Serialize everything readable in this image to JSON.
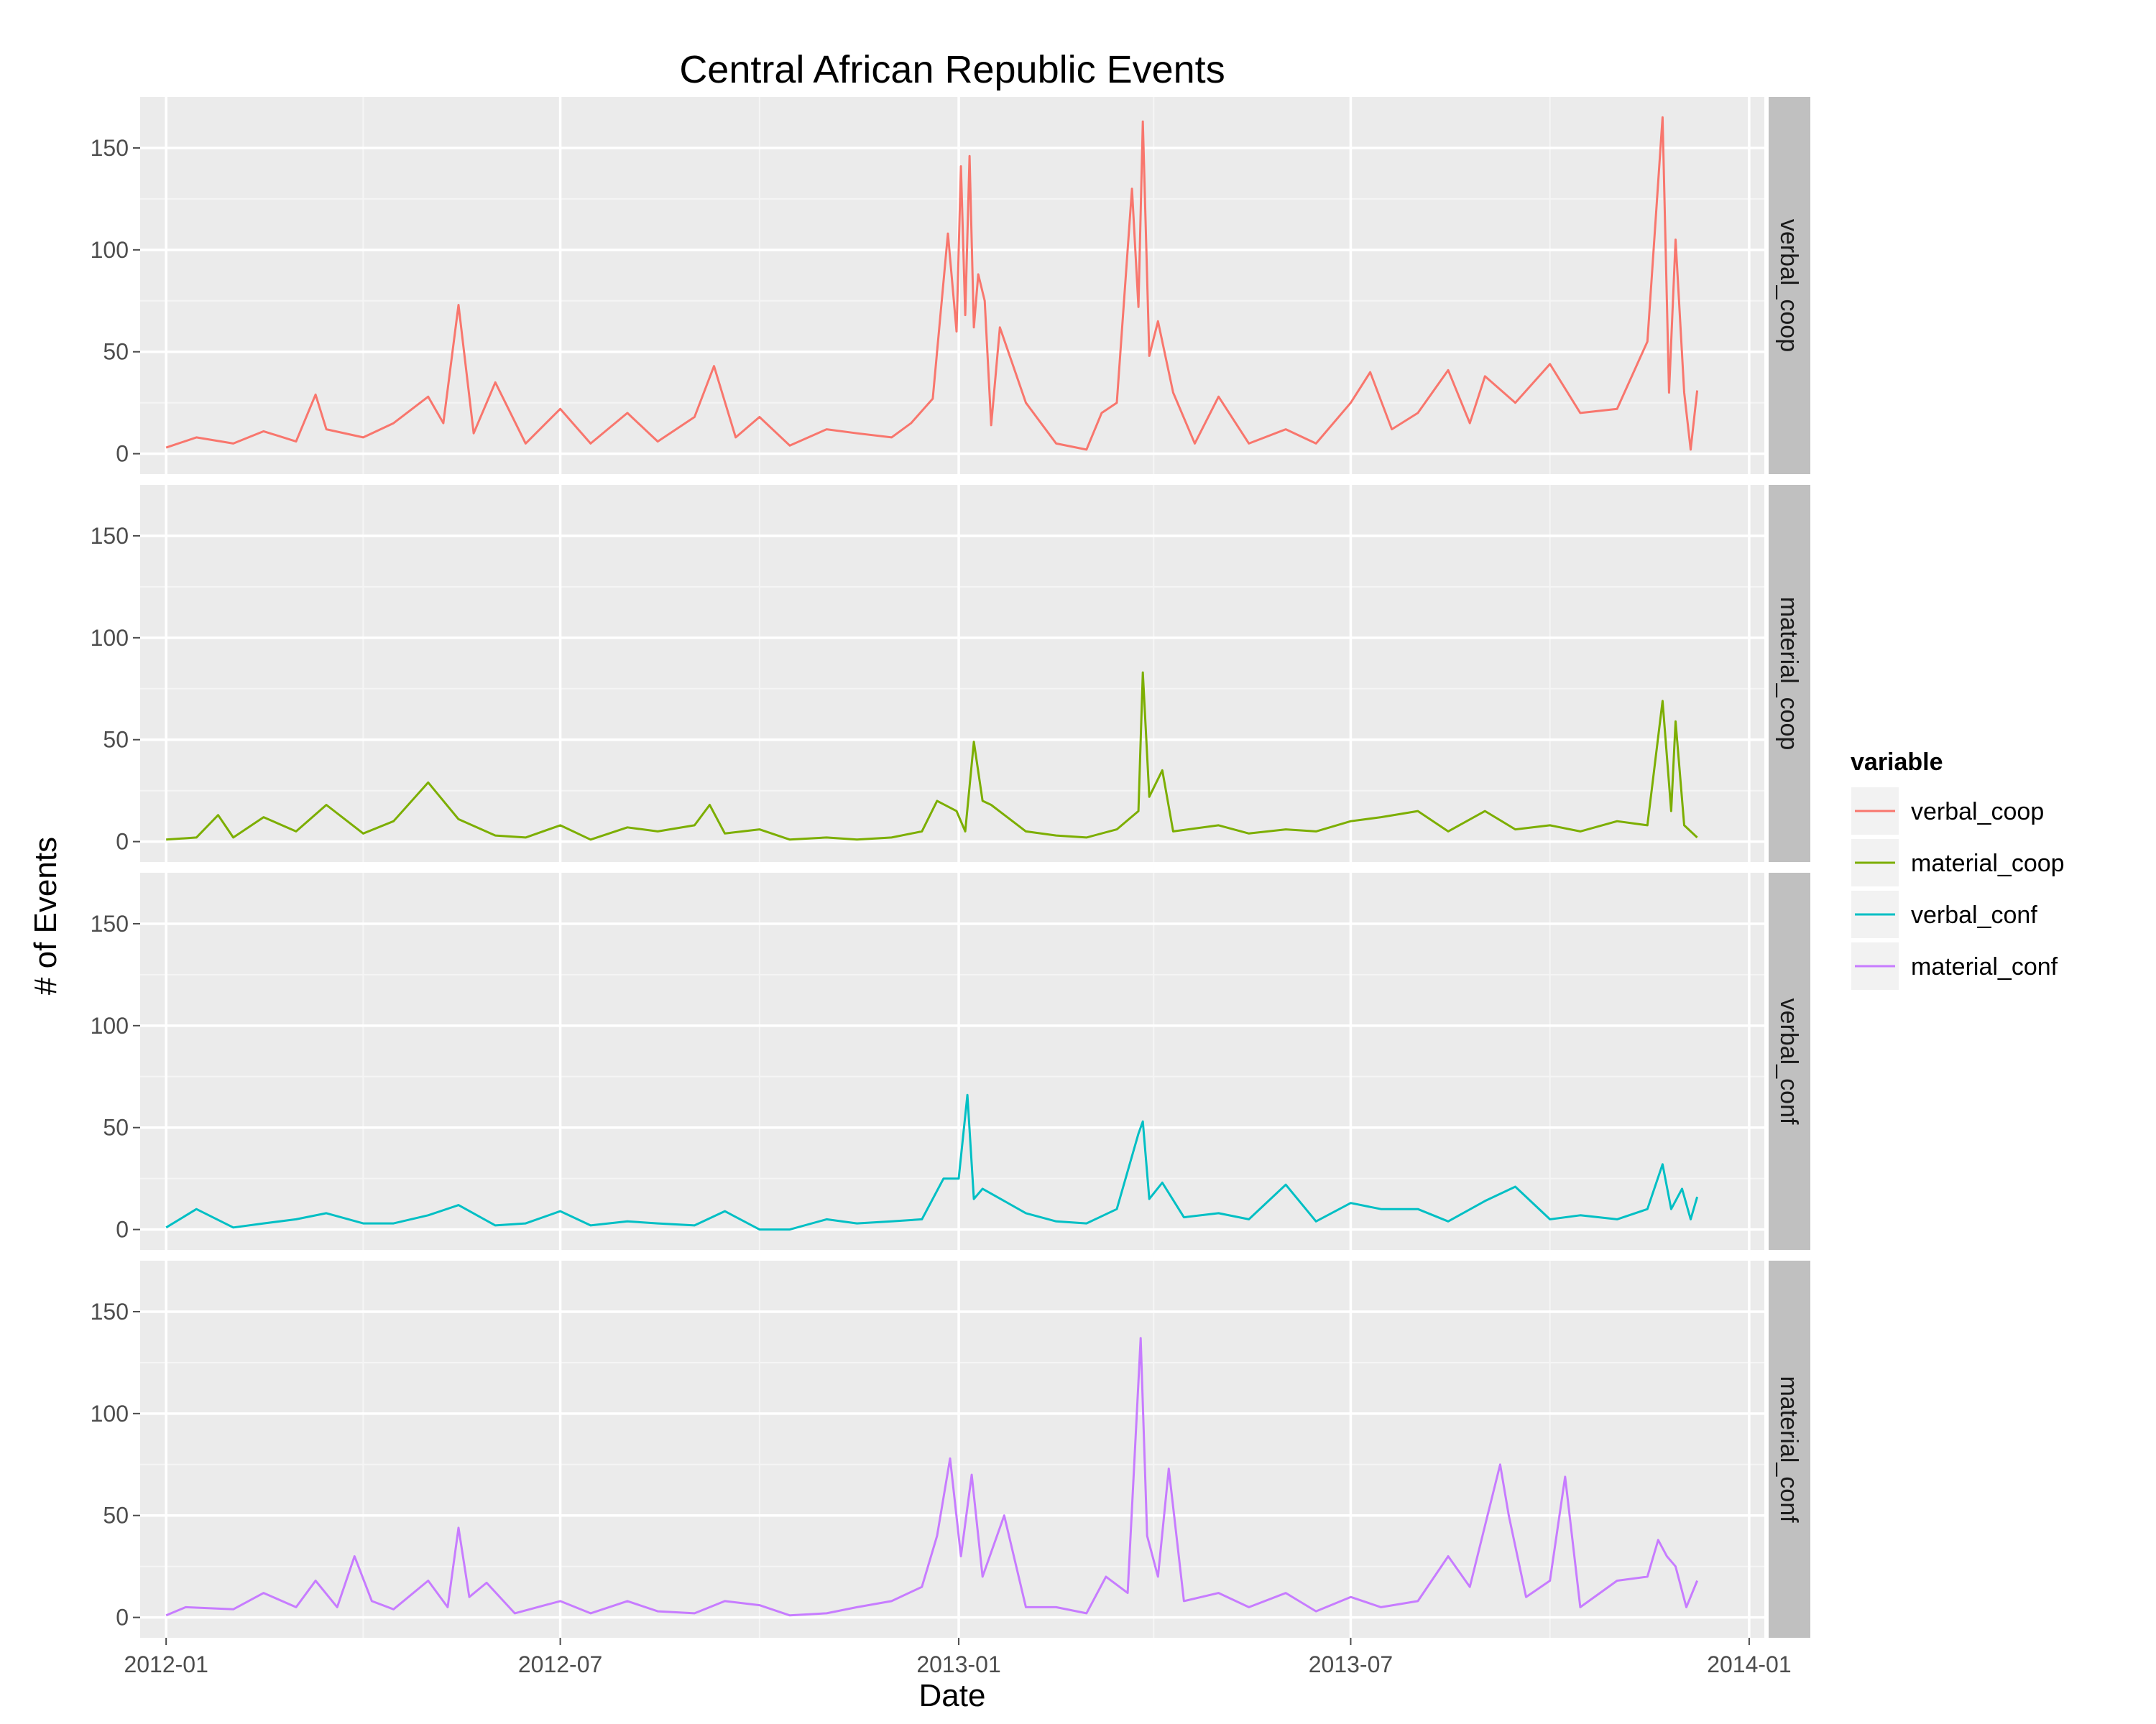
{
  "chart_data": {
    "type": "line",
    "title": "Central African Republic Events",
    "xlabel": "Date",
    "ylabel": "# of Events",
    "x_ticks": [
      "2012-01",
      "2012-07",
      "2013-01",
      "2013-07",
      "2014-01"
    ],
    "xlim": [
      "2011-12-20",
      "2014-01-08"
    ],
    "y_ticks": [
      0,
      50,
      100,
      150
    ],
    "ylim": [
      -10,
      175
    ],
    "grid": true,
    "facet": "rows",
    "legend": {
      "title": "variable",
      "position": "right"
    },
    "series": [
      {
        "name": "verbal_coop",
        "color": "#F8766D",
        "points": [
          [
            "2012-01-01",
            3
          ],
          [
            "2012-01-15",
            8
          ],
          [
            "2012-02-01",
            5
          ],
          [
            "2012-02-15",
            11
          ],
          [
            "2012-03-01",
            6
          ],
          [
            "2012-03-10",
            29
          ],
          [
            "2012-03-15",
            12
          ],
          [
            "2012-04-01",
            8
          ],
          [
            "2012-04-15",
            15
          ],
          [
            "2012-05-01",
            28
          ],
          [
            "2012-05-08",
            15
          ],
          [
            "2012-05-15",
            73
          ],
          [
            "2012-05-22",
            10
          ],
          [
            "2012-06-01",
            35
          ],
          [
            "2012-06-15",
            5
          ],
          [
            "2012-07-01",
            22
          ],
          [
            "2012-07-15",
            5
          ],
          [
            "2012-08-01",
            20
          ],
          [
            "2012-08-15",
            6
          ],
          [
            "2012-09-01",
            18
          ],
          [
            "2012-09-10",
            43
          ],
          [
            "2012-09-20",
            8
          ],
          [
            "2012-10-01",
            18
          ],
          [
            "2012-10-15",
            4
          ],
          [
            "2012-11-01",
            12
          ],
          [
            "2012-11-15",
            10
          ],
          [
            "2012-12-01",
            8
          ],
          [
            "2012-12-10",
            15
          ],
          [
            "2012-12-20",
            27
          ],
          [
            "2012-12-27",
            108
          ],
          [
            "2012-12-31",
            60
          ],
          [
            "2013-01-02",
            141
          ],
          [
            "2013-01-04",
            68
          ],
          [
            "2013-01-06",
            146
          ],
          [
            "2013-01-08",
            62
          ],
          [
            "2013-01-10",
            88
          ],
          [
            "2013-01-13",
            75
          ],
          [
            "2013-01-16",
            14
          ],
          [
            "2013-01-20",
            62
          ],
          [
            "2013-02-01",
            25
          ],
          [
            "2013-02-15",
            5
          ],
          [
            "2013-03-01",
            2
          ],
          [
            "2013-03-08",
            20
          ],
          [
            "2013-03-15",
            25
          ],
          [
            "2013-03-22",
            130
          ],
          [
            "2013-03-25",
            72
          ],
          [
            "2013-03-27",
            163
          ],
          [
            "2013-03-30",
            48
          ],
          [
            "2013-04-03",
            65
          ],
          [
            "2013-04-10",
            30
          ],
          [
            "2013-04-20",
            5
          ],
          [
            "2013-05-01",
            28
          ],
          [
            "2013-05-15",
            5
          ],
          [
            "2013-06-01",
            12
          ],
          [
            "2013-06-15",
            5
          ],
          [
            "2013-07-01",
            25
          ],
          [
            "2013-07-10",
            40
          ],
          [
            "2013-07-20",
            12
          ],
          [
            "2013-08-01",
            20
          ],
          [
            "2013-08-15",
            41
          ],
          [
            "2013-08-25",
            15
          ],
          [
            "2013-09-01",
            38
          ],
          [
            "2013-09-15",
            25
          ],
          [
            "2013-10-01",
            44
          ],
          [
            "2013-10-15",
            20
          ],
          [
            "2013-11-01",
            22
          ],
          [
            "2013-11-15",
            55
          ],
          [
            "2013-11-22",
            165
          ],
          [
            "2013-11-25",
            30
          ],
          [
            "2013-11-28",
            105
          ],
          [
            "2013-12-02",
            30
          ],
          [
            "2013-12-05",
            2
          ],
          [
            "2013-12-08",
            31
          ]
        ]
      },
      {
        "name": "material_coop",
        "color": "#7CAE00",
        "points": [
          [
            "2012-01-01",
            1
          ],
          [
            "2012-01-15",
            2
          ],
          [
            "2012-01-25",
            13
          ],
          [
            "2012-02-01",
            2
          ],
          [
            "2012-02-15",
            12
          ],
          [
            "2012-03-01",
            5
          ],
          [
            "2012-03-15",
            18
          ],
          [
            "2012-04-01",
            4
          ],
          [
            "2012-04-15",
            10
          ],
          [
            "2012-05-01",
            29
          ],
          [
            "2012-05-15",
            11
          ],
          [
            "2012-06-01",
            3
          ],
          [
            "2012-06-15",
            2
          ],
          [
            "2012-07-01",
            8
          ],
          [
            "2012-07-15",
            1
          ],
          [
            "2012-08-01",
            7
          ],
          [
            "2012-08-15",
            5
          ],
          [
            "2012-09-01",
            8
          ],
          [
            "2012-09-08",
            18
          ],
          [
            "2012-09-15",
            4
          ],
          [
            "2012-10-01",
            6
          ],
          [
            "2012-10-15",
            1
          ],
          [
            "2012-11-01",
            2
          ],
          [
            "2012-11-15",
            1
          ],
          [
            "2012-12-01",
            2
          ],
          [
            "2012-12-15",
            5
          ],
          [
            "2012-12-22",
            20
          ],
          [
            "2012-12-31",
            15
          ],
          [
            "2013-01-04",
            5
          ],
          [
            "2013-01-08",
            49
          ],
          [
            "2013-01-12",
            20
          ],
          [
            "2013-01-16",
            18
          ],
          [
            "2013-02-01",
            5
          ],
          [
            "2013-02-15",
            3
          ],
          [
            "2013-03-01",
            2
          ],
          [
            "2013-03-15",
            6
          ],
          [
            "2013-03-25",
            15
          ],
          [
            "2013-03-27",
            83
          ],
          [
            "2013-03-30",
            22
          ],
          [
            "2013-04-05",
            35
          ],
          [
            "2013-04-10",
            5
          ],
          [
            "2013-05-01",
            8
          ],
          [
            "2013-05-15",
            4
          ],
          [
            "2013-06-01",
            6
          ],
          [
            "2013-06-15",
            5
          ],
          [
            "2013-07-01",
            10
          ],
          [
            "2013-07-15",
            12
          ],
          [
            "2013-08-01",
            15
          ],
          [
            "2013-08-15",
            5
          ],
          [
            "2013-09-01",
            15
          ],
          [
            "2013-09-15",
            6
          ],
          [
            "2013-10-01",
            8
          ],
          [
            "2013-10-15",
            5
          ],
          [
            "2013-11-01",
            10
          ],
          [
            "2013-11-15",
            8
          ],
          [
            "2013-11-22",
            69
          ],
          [
            "2013-11-26",
            15
          ],
          [
            "2013-11-28",
            59
          ],
          [
            "2013-12-02",
            8
          ],
          [
            "2013-12-08",
            2
          ]
        ]
      },
      {
        "name": "verbal_conf",
        "color": "#00BFC4",
        "points": [
          [
            "2012-01-01",
            1
          ],
          [
            "2012-01-15",
            10
          ],
          [
            "2012-02-01",
            1
          ],
          [
            "2012-02-15",
            3
          ],
          [
            "2012-03-01",
            5
          ],
          [
            "2012-03-15",
            8
          ],
          [
            "2012-04-01",
            3
          ],
          [
            "2012-04-15",
            3
          ],
          [
            "2012-05-01",
            7
          ],
          [
            "2012-05-15",
            12
          ],
          [
            "2012-06-01",
            2
          ],
          [
            "2012-06-15",
            3
          ],
          [
            "2012-07-01",
            9
          ],
          [
            "2012-07-15",
            2
          ],
          [
            "2012-08-01",
            4
          ],
          [
            "2012-08-15",
            3
          ],
          [
            "2012-09-01",
            2
          ],
          [
            "2012-09-15",
            9
          ],
          [
            "2012-10-01",
            0
          ],
          [
            "2012-10-15",
            0
          ],
          [
            "2012-11-01",
            5
          ],
          [
            "2012-11-15",
            3
          ],
          [
            "2012-12-01",
            4
          ],
          [
            "2012-12-15",
            5
          ],
          [
            "2012-12-25",
            25
          ],
          [
            "2013-01-01",
            25
          ],
          [
            "2013-01-05",
            66
          ],
          [
            "2013-01-08",
            15
          ],
          [
            "2013-01-12",
            20
          ],
          [
            "2013-02-01",
            8
          ],
          [
            "2013-02-15",
            4
          ],
          [
            "2013-03-01",
            3
          ],
          [
            "2013-03-15",
            10
          ],
          [
            "2013-03-25",
            47
          ],
          [
            "2013-03-27",
            53
          ],
          [
            "2013-03-30",
            15
          ],
          [
            "2013-04-05",
            23
          ],
          [
            "2013-04-15",
            6
          ],
          [
            "2013-05-01",
            8
          ],
          [
            "2013-05-15",
            5
          ],
          [
            "2013-06-01",
            22
          ],
          [
            "2013-06-15",
            4
          ],
          [
            "2013-07-01",
            13
          ],
          [
            "2013-07-15",
            10
          ],
          [
            "2013-08-01",
            10
          ],
          [
            "2013-08-15",
            4
          ],
          [
            "2013-09-01",
            14
          ],
          [
            "2013-09-15",
            21
          ],
          [
            "2013-10-01",
            5
          ],
          [
            "2013-10-15",
            7
          ],
          [
            "2013-11-01",
            5
          ],
          [
            "2013-11-15",
            10
          ],
          [
            "2013-11-22",
            32
          ],
          [
            "2013-11-26",
            10
          ],
          [
            "2013-12-01",
            20
          ],
          [
            "2013-12-05",
            5
          ],
          [
            "2013-12-08",
            16
          ]
        ]
      },
      {
        "name": "material_conf",
        "color": "#C77CFF",
        "points": [
          [
            "2012-01-01",
            1
          ],
          [
            "2012-01-10",
            5
          ],
          [
            "2012-02-01",
            4
          ],
          [
            "2012-02-15",
            12
          ],
          [
            "2012-03-01",
            5
          ],
          [
            "2012-03-10",
            18
          ],
          [
            "2012-03-20",
            5
          ],
          [
            "2012-03-28",
            30
          ],
          [
            "2012-04-05",
            8
          ],
          [
            "2012-04-15",
            4
          ],
          [
            "2012-05-01",
            18
          ],
          [
            "2012-05-10",
            5
          ],
          [
            "2012-05-15",
            44
          ],
          [
            "2012-05-20",
            10
          ],
          [
            "2012-05-28",
            17
          ],
          [
            "2012-06-10",
            2
          ],
          [
            "2012-07-01",
            8
          ],
          [
            "2012-07-15",
            2
          ],
          [
            "2012-08-01",
            8
          ],
          [
            "2012-08-15",
            3
          ],
          [
            "2012-09-01",
            2
          ],
          [
            "2012-09-15",
            8
          ],
          [
            "2012-10-01",
            6
          ],
          [
            "2012-10-15",
            1
          ],
          [
            "2012-11-01",
            2
          ],
          [
            "2012-11-15",
            5
          ],
          [
            "2012-12-01",
            8
          ],
          [
            "2012-12-15",
            15
          ],
          [
            "2012-12-22",
            40
          ],
          [
            "2012-12-28",
            78
          ],
          [
            "2013-01-02",
            30
          ],
          [
            "2013-01-07",
            70
          ],
          [
            "2013-01-12",
            20
          ],
          [
            "2013-01-22",
            50
          ],
          [
            "2013-02-01",
            5
          ],
          [
            "2013-02-15",
            5
          ],
          [
            "2013-03-01",
            2
          ],
          [
            "2013-03-10",
            20
          ],
          [
            "2013-03-20",
            12
          ],
          [
            "2013-03-26",
            137
          ],
          [
            "2013-03-29",
            40
          ],
          [
            "2013-04-03",
            20
          ],
          [
            "2013-04-08",
            73
          ],
          [
            "2013-04-15",
            8
          ],
          [
            "2013-05-01",
            12
          ],
          [
            "2013-05-15",
            5
          ],
          [
            "2013-06-01",
            12
          ],
          [
            "2013-06-15",
            3
          ],
          [
            "2013-07-01",
            10
          ],
          [
            "2013-07-15",
            5
          ],
          [
            "2013-08-01",
            8
          ],
          [
            "2013-08-15",
            30
          ],
          [
            "2013-08-25",
            15
          ],
          [
            "2013-09-08",
            75
          ],
          [
            "2013-09-12",
            50
          ],
          [
            "2013-09-20",
            10
          ],
          [
            "2013-10-01",
            18
          ],
          [
            "2013-10-08",
            69
          ],
          [
            "2013-10-15",
            5
          ],
          [
            "2013-11-01",
            18
          ],
          [
            "2013-11-15",
            20
          ],
          [
            "2013-11-20",
            38
          ],
          [
            "2013-11-24",
            30
          ],
          [
            "2013-11-28",
            25
          ],
          [
            "2013-12-03",
            5
          ],
          [
            "2013-12-08",
            18
          ]
        ]
      }
    ]
  }
}
